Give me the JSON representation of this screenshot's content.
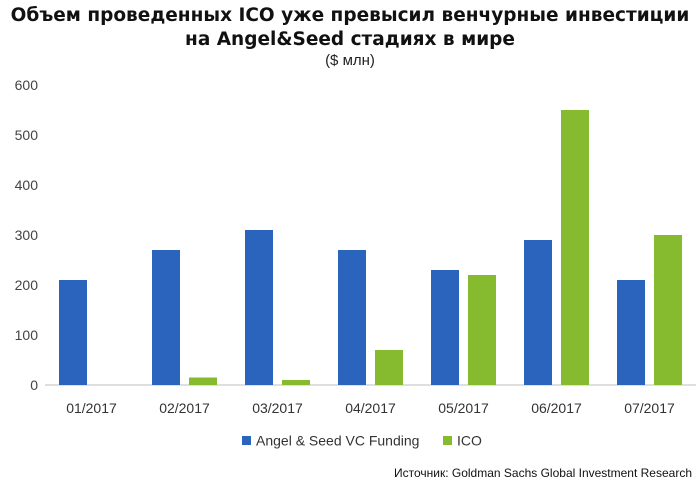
{
  "header": {
    "title_line1": "Объем проведенных ICO уже превысил венчурные инвестиции",
    "title_line2": "на Angel&Seed стадиях в мире",
    "subtitle": "($ млн)"
  },
  "source": "Источник: Goldman Sachs Global Investment Research",
  "colors": {
    "angel_seed": "#2a64bd",
    "ico": "#86bb2f"
  },
  "chart_data": {
    "type": "bar",
    "categories": [
      "01/2017",
      "02/2017",
      "03/2017",
      "04/2017",
      "05/2017",
      "06/2017",
      "07/2017"
    ],
    "series": [
      {
        "name": "Angel & Seed VC Funding",
        "values": [
          210,
          270,
          310,
          270,
          230,
          290,
          210
        ]
      },
      {
        "name": "ICO",
        "values": [
          0,
          15,
          10,
          70,
          220,
          550,
          300
        ]
      }
    ],
    "ylim": [
      0,
      600
    ],
    "yticks": [
      "0",
      "100",
      "200",
      "300",
      "400",
      "500",
      "600"
    ],
    "grid": false,
    "legend": "bottom"
  }
}
